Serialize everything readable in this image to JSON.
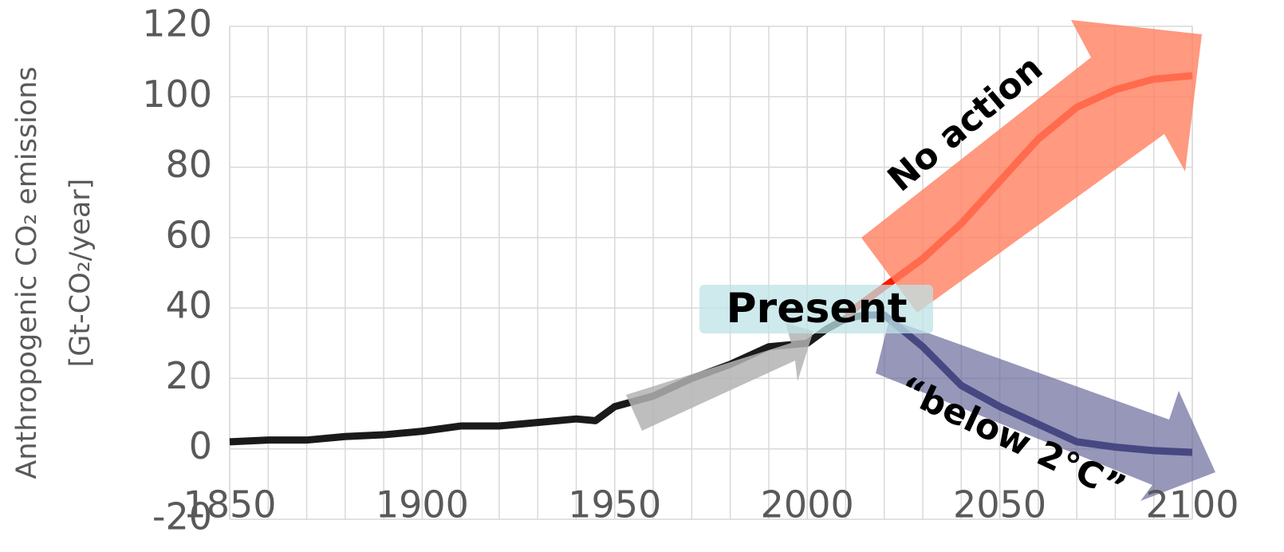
{
  "chart_data": {
    "type": "line",
    "y_label_lines": [
      "Anthropogenic CO₂ emissions",
      "[Gt-CO₂/year]"
    ],
    "annotations": [
      "No action",
      "Present",
      "“below 2°C”"
    ],
    "xlim": [
      1850,
      2100
    ],
    "xticks": [
      1850,
      1900,
      1950,
      2000,
      2050,
      2100
    ],
    "ylim": [
      -20,
      120
    ],
    "yticks": [
      -20,
      0,
      20,
      40,
      60,
      80,
      100,
      120
    ],
    "grid": true,
    "x_grid_step": 10,
    "series": [
      {
        "color": "#1a1a1a",
        "x": [
          1850,
          1860,
          1870,
          1880,
          1890,
          1900,
          1910,
          1920,
          1930,
          1940,
          1945,
          1950,
          1960,
          1970,
          1980,
          1990,
          2000,
          2005,
          2010,
          2015
        ],
        "values": [
          2,
          2.5,
          2.5,
          3.5,
          4,
          5,
          6.5,
          6.5,
          7.5,
          8.5,
          8,
          12,
          15,
          20,
          24,
          29,
          30,
          34,
          37,
          38
        ]
      },
      {
        "color": "#ff1a00",
        "x": [
          2010,
          2020,
          2030,
          2040,
          2050,
          2060,
          2070,
          2080,
          2090,
          2100
        ],
        "values": [
          38,
          46,
          54,
          64,
          76,
          88,
          97,
          102,
          105,
          106
        ]
      },
      {
        "color": "#1a1a5e",
        "x": [
          2015,
          2020,
          2030,
          2040,
          2050,
          2060,
          2070,
          2080,
          2090,
          2100
        ],
        "values": [
          38,
          38,
          29,
          18,
          12,
          7,
          2,
          0.5,
          -0.5,
          -1
        ]
      }
    ]
  }
}
